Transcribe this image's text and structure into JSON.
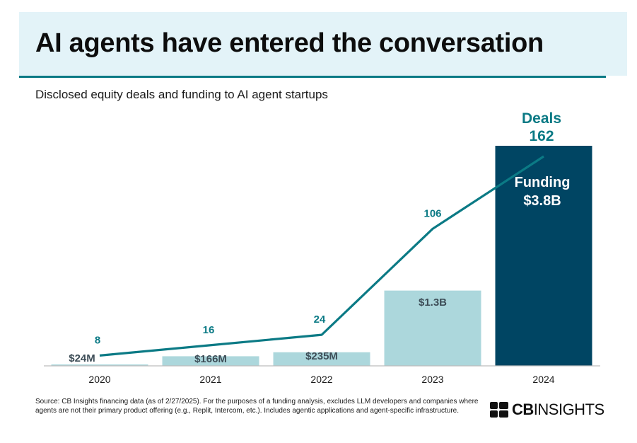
{
  "header": {
    "title": "AI agents have entered the conversation",
    "subtitle": "Disclosed equity deals and funding to AI agent startups"
  },
  "colors": {
    "header_bg": "#e3f3f8",
    "accent": "#0b7a85",
    "bar_light": "#acd7dc",
    "bar_dark": "#004563",
    "line": "#0b7a85"
  },
  "chart_data": {
    "type": "bar",
    "categories": [
      "2020",
      "2021",
      "2022",
      "2023",
      "2024"
    ],
    "series": [
      {
        "name": "Funding",
        "values": [
          0.024,
          0.166,
          0.235,
          1.3,
          3.8
        ],
        "labels": [
          "$24M",
          "$166M",
          "$235M",
          "$1.3B",
          "$3.8B"
        ]
      },
      {
        "name": "Deals",
        "type": "line",
        "values": [
          8,
          16,
          24,
          106,
          162
        ],
        "labels": [
          "8",
          "16",
          "24",
          "106",
          "162"
        ]
      }
    ],
    "annotations": {
      "deals_title": "Deals",
      "deals_value": "162",
      "funding_title": "Funding",
      "funding_value": "$3.8B"
    },
    "highlight_index": 4,
    "grid": false,
    "legend": "none"
  },
  "footer": {
    "source": "Source: CB Insights financing data (as of 2/27/2025). For the purposes of a funding analysis, excludes LLM developers and companies where agents are not their primary product offering (e.g., Replit, Intercom, etc.). Includes agentic applications and agent-specific infrastructure.",
    "logo_bold": "CB",
    "logo_regular": "INSIGHTS",
    "logo_icon": "cb-insights-mark-icon"
  }
}
